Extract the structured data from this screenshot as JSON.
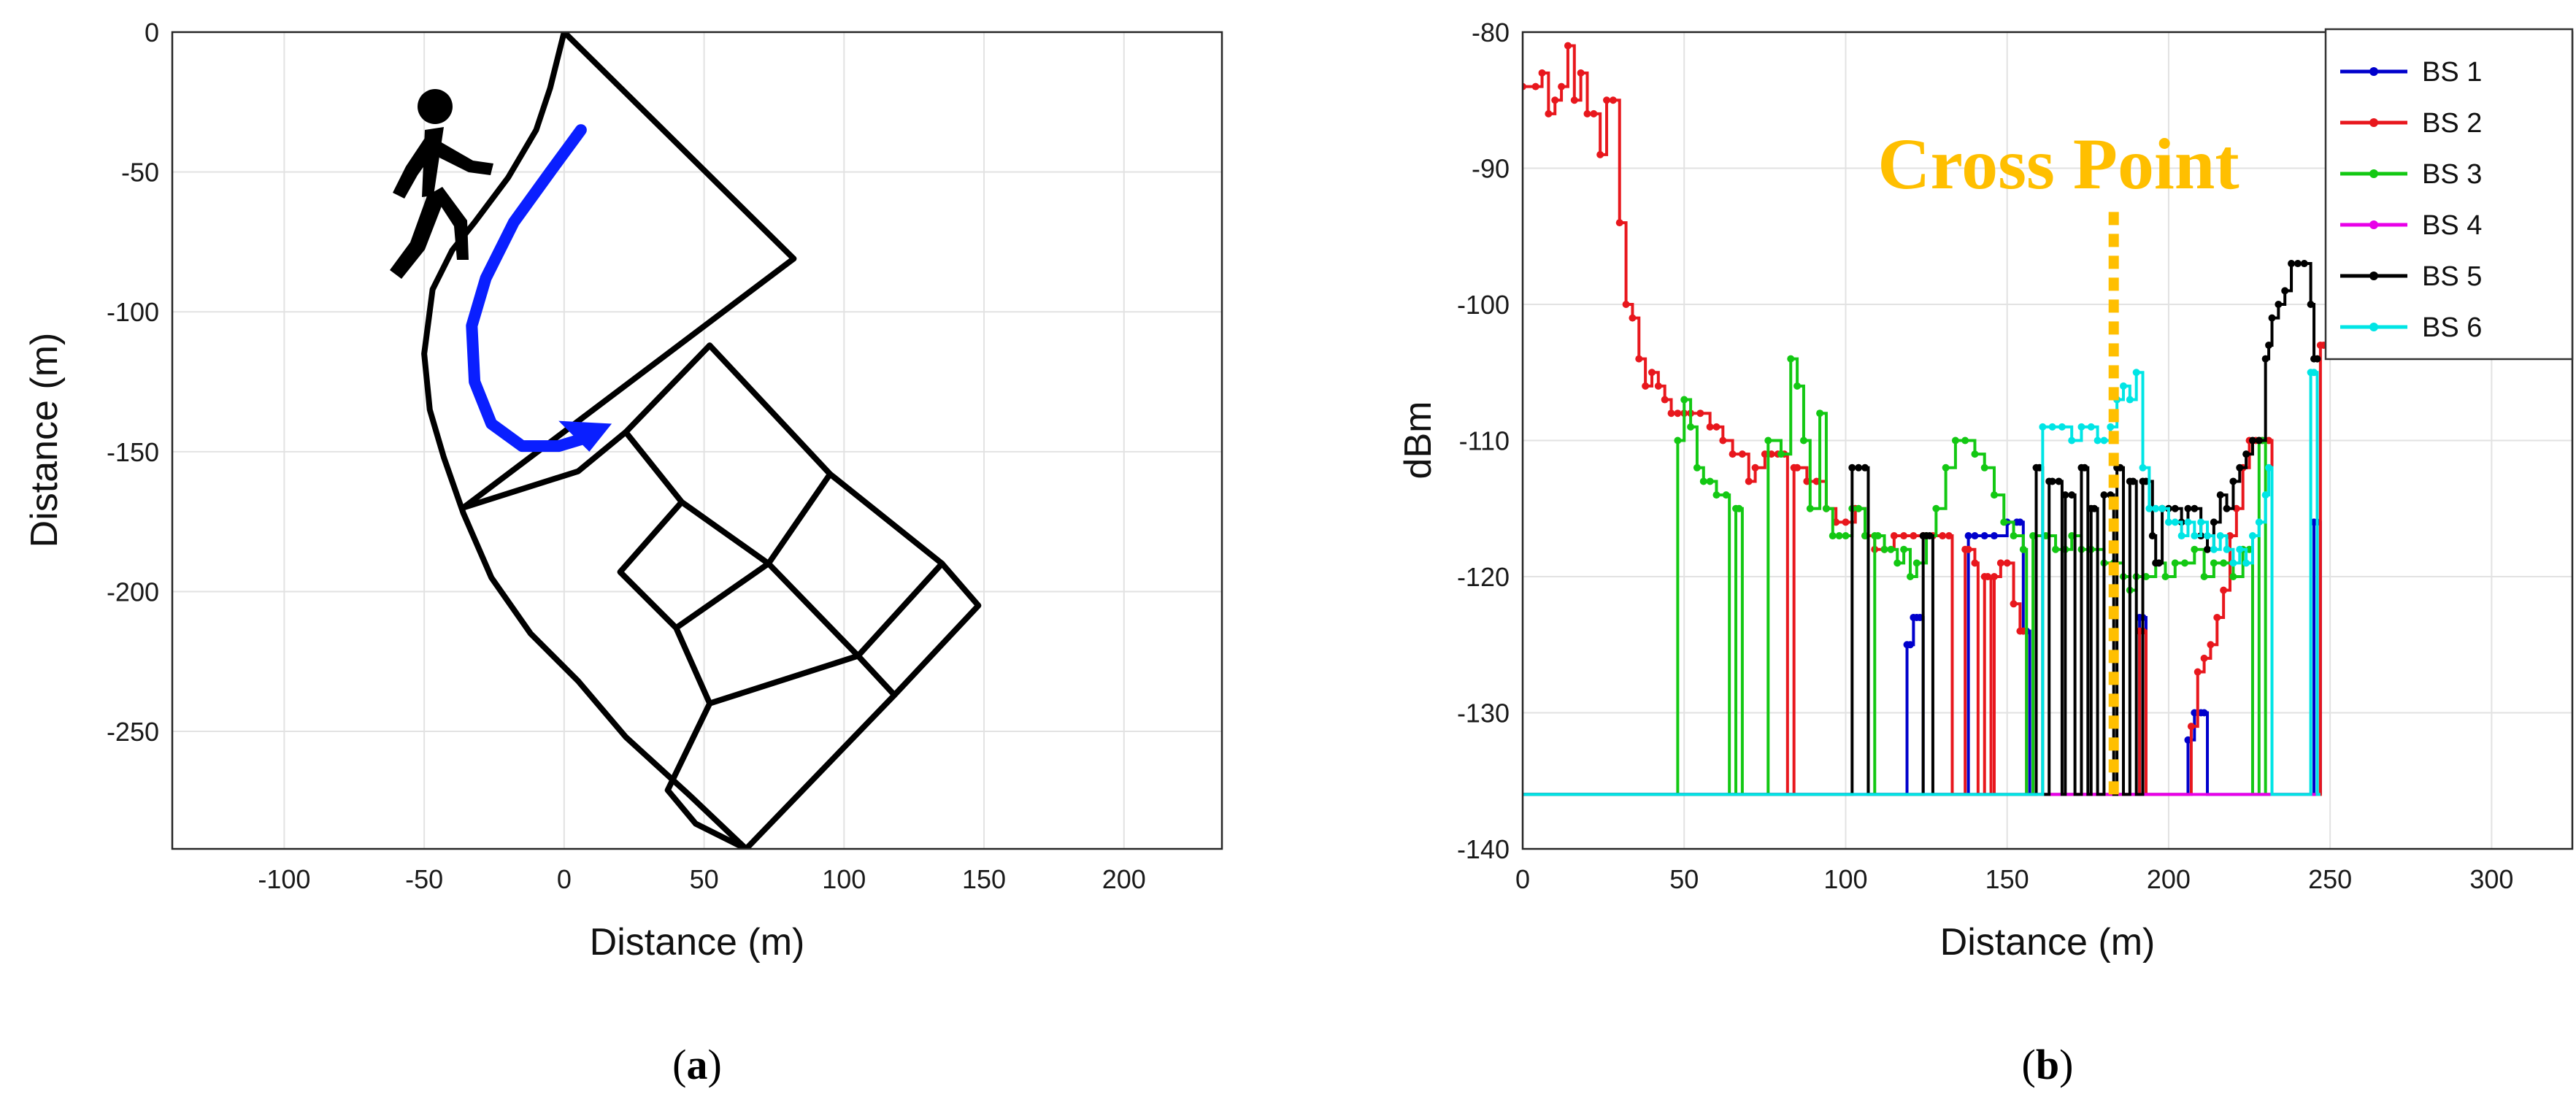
{
  "chart_data": [
    {
      "type": "map",
      "panel_label": "a",
      "xlabel": "Distance (m)",
      "ylabel": "Distance (m)",
      "xlim": [
        -140,
        235
      ],
      "ylim": [
        -292,
        0
      ],
      "xticks": [
        -100,
        -50,
        0,
        50,
        100,
        150,
        200
      ],
      "yticks": [
        0,
        -50,
        -100,
        -150,
        -200,
        -250
      ],
      "grid": true,
      "road_segments": [
        [
          [
            0,
            0
          ],
          [
            -5,
            -20
          ],
          [
            -10,
            -35
          ],
          [
            -20,
            -52
          ],
          [
            -32,
            -68
          ],
          [
            -40,
            -78
          ],
          [
            -47,
            -92
          ],
          [
            -50,
            -115
          ],
          [
            -48,
            -135
          ],
          [
            -43,
            -152
          ],
          [
            -36,
            -172
          ],
          [
            -26,
            -195
          ],
          [
            -12,
            -215
          ],
          [
            5,
            -232
          ],
          [
            22,
            -252
          ],
          [
            45,
            -273
          ],
          [
            65,
            -292
          ]
        ],
        [
          [
            0,
            0
          ],
          [
            82,
            -81
          ]
        ],
        [
          [
            82,
            -81
          ],
          [
            -36,
            -170
          ]
        ],
        [
          [
            -36,
            -170
          ],
          [
            5,
            -157
          ],
          [
            22,
            -143
          ],
          [
            52,
            -112
          ]
        ],
        [
          [
            22,
            -143
          ],
          [
            42,
            -168
          ],
          [
            73,
            -190
          ],
          [
            105,
            -223
          ],
          [
            118,
            -237
          ]
        ],
        [
          [
            52,
            -112
          ],
          [
            95,
            -158
          ],
          [
            135,
            -190
          ],
          [
            148,
            -205
          ],
          [
            118,
            -237
          ],
          [
            65,
            -292
          ]
        ],
        [
          [
            42,
            -168
          ],
          [
            20,
            -193
          ],
          [
            40,
            -213
          ],
          [
            73,
            -190
          ],
          [
            95,
            -158
          ]
        ],
        [
          [
            40,
            -213
          ],
          [
            52,
            -240
          ],
          [
            105,
            -223
          ],
          [
            135,
            -190
          ]
        ],
        [
          [
            52,
            -240
          ],
          [
            37,
            -271
          ]
        ],
        [
          [
            37,
            -271
          ],
          [
            47,
            -283
          ],
          [
            65,
            -292
          ]
        ]
      ],
      "walk_path": [
        [
          6,
          -35
        ],
        [
          -5,
          -50
        ],
        [
          -18,
          -68
        ],
        [
          -28,
          -88
        ],
        [
          -33,
          -105
        ],
        [
          -32,
          -125
        ],
        [
          -26,
          -140
        ],
        [
          -15,
          -148
        ],
        [
          -2,
          -148
        ],
        [
          8,
          -145
        ]
      ],
      "walk_arrow_head": [
        [
          17,
          -140
        ],
        [
          -2,
          -139
        ],
        [
          9,
          -150
        ]
      ],
      "colors": {
        "road": "#000000",
        "path": "#0a1fff",
        "walker": "#000000"
      },
      "icons": [
        "pedestrian-icon"
      ]
    },
    {
      "type": "line",
      "panel_label": "b",
      "xlabel": "Distance (m)",
      "ylabel": "dBm",
      "xlim": [
        0,
        325
      ],
      "ylim": [
        -140,
        -80
      ],
      "xticks": [
        0,
        50,
        100,
        150,
        200,
        250,
        300
      ],
      "yticks": [
        -80,
        -90,
        -100,
        -110,
        -120,
        -130,
        -140
      ],
      "grid": true,
      "legend_position": "top-right",
      "annotation": {
        "text": "Cross Point",
        "x": 183,
        "y_from": -136,
        "y_to": -93,
        "color": "#ffbf00"
      },
      "series": [
        {
          "name": "BS 1",
          "color": "#0000cc",
          "x": [
            0,
            118,
            119,
            120,
            121,
            122,
            123,
            124,
            125,
            137,
            138,
            140,
            143,
            146,
            150,
            153,
            154,
            155,
            156,
            157,
            158,
            190,
            191,
            192,
            193,
            194,
            205,
            206,
            208,
            210,
            211,
            212,
            244,
            245,
            246,
            247
          ],
          "y": [
            -136,
            -136,
            -125,
            -125,
            -123,
            -123,
            -123,
            -136,
            -136,
            -136,
            -117,
            -117,
            -117,
            -117,
            -116,
            -116,
            -116,
            -124,
            -124,
            -136,
            -136,
            -136,
            -123,
            -123,
            -136,
            -136,
            -136,
            -132,
            -130,
            -130,
            -130,
            -136,
            -136,
            -116,
            -116,
            -136
          ]
        },
        {
          "name": "BS 2",
          "color": "#e8171d",
          "x": [
            0,
            4,
            6,
            8,
            10,
            12,
            14,
            16,
            18,
            20,
            22,
            24,
            26,
            28,
            30,
            32,
            34,
            36,
            38,
            40,
            42,
            44,
            46,
            48,
            50,
            52,
            55,
            58,
            60,
            62,
            65,
            68,
            70,
            72,
            75,
            77,
            79,
            81,
            82,
            83,
            84,
            85,
            88,
            91,
            94,
            97,
            100,
            103,
            106,
            109,
            112,
            115,
            118,
            121,
            124,
            127,
            130,
            132,
            133,
            134,
            136,
            137,
            138,
            140,
            141,
            142,
            143,
            144,
            145,
            146,
            148,
            150,
            152,
            154,
            155,
            156,
            190,
            191,
            192,
            193,
            194,
            206,
            207,
            209,
            211,
            213,
            215,
            217,
            219,
            221,
            223,
            225,
            227,
            229,
            231,
            232,
            247,
            248
          ],
          "y": [
            -84,
            -84,
            -83,
            -86,
            -85,
            -84,
            -81,
            -85,
            -83,
            -86,
            -86,
            -89,
            -85,
            -85,
            -94,
            -100,
            -101,
            -104,
            -106,
            -105,
            -106,
            -107,
            -108,
            -108,
            -108,
            -108,
            -108,
            -109,
            -109,
            -110,
            -111,
            -111,
            -113,
            -112,
            -111,
            -111,
            -111,
            -111,
            -136,
            -136,
            -112,
            -112,
            -113,
            -113,
            -115,
            -116,
            -116,
            -115,
            -117,
            -118,
            -118,
            -117,
            -117,
            -117,
            -117,
            -117,
            -117,
            -117,
            -136,
            -136,
            -136,
            -118,
            -118,
            -119,
            -136,
            -136,
            -120,
            -120,
            -136,
            -120,
            -119,
            -119,
            -122,
            -124,
            -124,
            -136,
            -136,
            -124,
            -124,
            -136,
            -136,
            -136,
            -131,
            -127,
            -126,
            -125,
            -123,
            -121,
            -117,
            -115,
            -112,
            -110,
            -110,
            -110,
            -110,
            -136,
            -103,
            -103
          ]
        },
        {
          "name": "BS 3",
          "color": "#13c813",
          "x": [
            0,
            47,
            48,
            50,
            52,
            54,
            56,
            58,
            60,
            63,
            64,
            65,
            66,
            67,
            68,
            69,
            76,
            80,
            83,
            85,
            87,
            89,
            92,
            94,
            96,
            98,
            100,
            102,
            104,
            106,
            107,
            108,
            109,
            110,
            112,
            114,
            116,
            118,
            120,
            122,
            125,
            128,
            131,
            134,
            137,
            140,
            143,
            146,
            149,
            152,
            155,
            156,
            157,
            158,
            162,
            165,
            168,
            170,
            173,
            176,
            180,
            183,
            186,
            188,
            190,
            193,
            196,
            199,
            202,
            205,
            208,
            211,
            214,
            217,
            220,
            223,
            225,
            226,
            227,
            228,
            229,
            230,
            231,
            232
          ],
          "y": [
            -136,
            -136,
            -110,
            -107,
            -109,
            -112,
            -113,
            -113,
            -114,
            -114,
            -136,
            -136,
            -115,
            -115,
            -136,
            -136,
            -110,
            -111,
            -104,
            -106,
            -110,
            -115,
            -108,
            -115,
            -117,
            -117,
            -117,
            -115,
            -115,
            -117,
            -136,
            -136,
            -117,
            -117,
            -118,
            -118,
            -119,
            -118,
            -120,
            -119,
            -117,
            -115,
            -112,
            -110,
            -110,
            -111,
            -112,
            -114,
            -116,
            -117,
            -118,
            -136,
            -136,
            -117,
            -117,
            -118,
            -118,
            -117,
            -118,
            -118,
            -119,
            -119,
            -120,
            -121,
            -120,
            -120,
            -119,
            -120,
            -119,
            -119,
            -118,
            -120,
            -119,
            -119,
            -120,
            -118,
            -118,
            -136,
            -136,
            -110,
            -110,
            -136,
            -136,
            -136
          ]
        },
        {
          "name": "BS 4",
          "color": "#e800e8",
          "x": [
            0,
            160,
            185,
            195,
            230,
            246
          ],
          "y": [
            -136,
            -136,
            -136,
            -136,
            -136,
            -136
          ]
        },
        {
          "name": "BS 5",
          "color": "#000000",
          "x": [
            0,
            101,
            102,
            104,
            106,
            107,
            108,
            123,
            124,
            125,
            126,
            127,
            128,
            129,
            158,
            159,
            160,
            161,
            162,
            163,
            164,
            166,
            167,
            168,
            170,
            171,
            172,
            173,
            174,
            175,
            176,
            177,
            178,
            179,
            180,
            182,
            183,
            184,
            185,
            186,
            187,
            188,
            189,
            190,
            191,
            192,
            193,
            195,
            196,
            197,
            198,
            200,
            202,
            204,
            206,
            208,
            210,
            212,
            214,
            216,
            218,
            220,
            222,
            224,
            226,
            228,
            230,
            231,
            232,
            234,
            236,
            238,
            240,
            242,
            244,
            245,
            246
          ],
          "y": [
            -136,
            -136,
            -112,
            -112,
            -112,
            -136,
            -136,
            -136,
            -117,
            -117,
            -117,
            -136,
            -136,
            -136,
            -136,
            -112,
            -112,
            -136,
            -136,
            -113,
            -113,
            -113,
            -136,
            -114,
            -114,
            -136,
            -136,
            -112,
            -112,
            -136,
            -115,
            -115,
            -136,
            -136,
            -114,
            -114,
            -136,
            -112,
            -112,
            -136,
            -136,
            -113,
            -113,
            -136,
            -136,
            -113,
            -113,
            -117,
            -119,
            -119,
            -115,
            -115,
            -115,
            -116,
            -115,
            -115,
            -117,
            -118,
            -116,
            -114,
            -115,
            -113,
            -112,
            -111,
            -110,
            -110,
            -104,
            -103,
            -101,
            -100,
            -99,
            -97,
            -97,
            -97,
            -100,
            -104,
            -104
          ]
        },
        {
          "name": "BS 6",
          "color": "#00e5e5",
          "x": [
            0,
            159,
            160,
            161,
            164,
            167,
            170,
            173,
            176,
            178,
            180,
            182,
            184,
            186,
            188,
            190,
            192,
            194,
            196,
            198,
            200,
            202,
            204,
            206,
            208,
            210,
            212,
            214,
            216,
            218,
            220,
            222,
            224,
            226,
            228,
            230,
            231,
            232,
            243,
            244,
            245,
            246,
            247
          ],
          "y": [
            -136,
            -136,
            -136,
            -109,
            -109,
            -109,
            -110,
            -109,
            -109,
            -110,
            -110,
            -109,
            -107,
            -106,
            -107,
            -105,
            -112,
            -115,
            -115,
            -115,
            -116,
            -116,
            -117,
            -116,
            -117,
            -116,
            -117,
            -118,
            -117,
            -118,
            -119,
            -118,
            -119,
            -117,
            -116,
            -114,
            -112,
            -136,
            -136,
            -105,
            -105,
            -136,
            -136
          ]
        }
      ]
    }
  ]
}
